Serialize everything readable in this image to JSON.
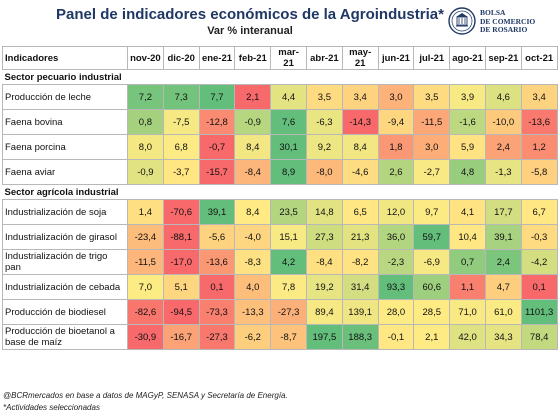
{
  "header": {
    "title": "Panel de indicadores económicos de la Agroindustria*",
    "subtitle": "Var % interanual",
    "logo_line1": "BOLSA",
    "logo_line2": "DE COMERCIO",
    "logo_line3": "DE ROSARIO"
  },
  "table": {
    "corner_label": "Indicadores",
    "months": [
      "nov-20",
      "dic-20",
      "ene-21",
      "feb-21",
      "mar-21",
      "abr-21",
      "may-21",
      "jun-21",
      "jul-21",
      "ago-21",
      "sep-21",
      "oct-21"
    ],
    "sections": [
      {
        "title": "Sector pecuario industrial",
        "rows": [
          {
            "label": "Producción de leche",
            "values": [
              "7,2",
              "7,3",
              "7,7",
              "2,1",
              "4,4",
              "3,5",
              "3,4",
              "3,0",
              "3,5",
              "3,9",
              "4,6",
              "3,4"
            ]
          },
          {
            "label": "Faena bovina",
            "values": [
              "0,8",
              "-7,5",
              "-12,8",
              "-0,9",
              "7,6",
              "-6,3",
              "-14,3",
              "-9,4",
              "-11,5",
              "-1,6",
              "-10,0",
              "-13,6"
            ]
          },
          {
            "label": "Faena porcina",
            "values": [
              "8,0",
              "6,8",
              "-0,7",
              "8,4",
              "30,1",
              "9,2",
              "8,4",
              "1,8",
              "3,0",
              "5,9",
              "2,4",
              "1,2"
            ]
          },
          {
            "label": "Faena aviar",
            "values": [
              "-0,9",
              "-3,7",
              "-15,7",
              "-8,4",
              "8,9",
              "-8,0",
              "-4,6",
              "2,6",
              "-2,7",
              "4,8",
              "-1,3",
              "-5,8"
            ]
          }
        ]
      },
      {
        "title": "Sector agrícola industrial",
        "rows": [
          {
            "label": "Industrialización de soja",
            "values": [
              "1,4",
              "-70,6",
              "39,1",
              "8,4",
              "23,5",
              "14,8",
              "6,5",
              "12,0",
              "9,7",
              "4,1",
              "17,7",
              "6,7"
            ]
          },
          {
            "label": "Industrialización de girasol",
            "values": [
              "-23,4",
              "-88,1",
              "-5,6",
              "-4,0",
              "15,1",
              "27,3",
              "21,3",
              "36,0",
              "59,7",
              "10,4",
              "39,1",
              "-0,3"
            ]
          },
          {
            "label": "Industrialización de trigo pan",
            "values": [
              "-11,5",
              "-17,0",
              "-13,6",
              "-8,3",
              "4,2",
              "-8,4",
              "-8,2",
              "-2,3",
              "-6,9",
              "0,7",
              "2,4",
              "-4,2"
            ]
          },
          {
            "label": "Industrialización de cebada",
            "values": [
              "7,0",
              "5,1",
              "0,1",
              "4,0",
              "7,8",
              "19,2",
              "31,4",
              "93,3",
              "60,6",
              "1,1",
              "4,7",
              "0,1"
            ]
          },
          {
            "label": "Producción de biodiesel",
            "values": [
              "-82,6",
              "-94,5",
              "-73,3",
              "-13,3",
              "-27,3",
              "89,4",
              "139,1",
              "28,0",
              "28,5",
              "71,0",
              "61,0",
              "1101,3"
            ]
          },
          {
            "label": "Producción de bioetanol a base de maíz",
            "values": [
              "-30,9",
              "-16,7",
              "-27,3",
              "-6,2",
              "-8,7",
              "197,5",
              "188,3",
              "-0,1",
              "2,1",
              "42,0",
              "34,3",
              "78,4"
            ]
          }
        ]
      }
    ]
  },
  "footnotes": {
    "source": "@BCRmercados en base a datos de MAGyP, SENASA y Secretaría de Energía.",
    "note": "*Actividades seleccionadas"
  }
}
